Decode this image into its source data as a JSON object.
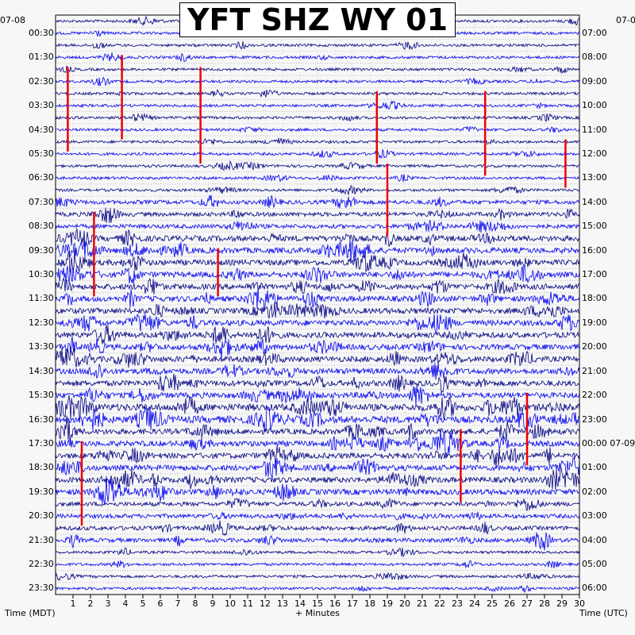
{
  "chart_data": {
    "type": "line",
    "title": "YFT SHZ WY 01",
    "xlabel": "+ Minutes",
    "left_axis_label": "Time (MDT)",
    "right_axis_label": "Time (UTC)",
    "left_date": "07-08",
    "right_date_start": "07-0",
    "right_date_next": "07-09",
    "x_range": [
      0,
      30
    ],
    "x_ticks": [
      1,
      2,
      3,
      4,
      5,
      6,
      7,
      8,
      9,
      10,
      11,
      12,
      13,
      14,
      15,
      16,
      17,
      18,
      19,
      20,
      21,
      22,
      23,
      24,
      25,
      26,
      27,
      28,
      29,
      30
    ],
    "left_tick_labels": [
      "00:30",
      "01:30",
      "02:30",
      "03:30",
      "04:30",
      "05:30",
      "06:30",
      "07:30",
      "08:30",
      "09:30",
      "10:30",
      "11:30",
      "12:30",
      "13:30",
      "14:30",
      "15:30",
      "16:30",
      "17:30",
      "18:30",
      "19:30",
      "20:30",
      "21:30",
      "22:30",
      "23:30"
    ],
    "right_tick_labels": [
      "07:00",
      "08:00",
      "09:00",
      "10:00",
      "11:00",
      "12:00",
      "13:00",
      "14:00",
      "15:00",
      "16:00",
      "17:00",
      "18:00",
      "19:00",
      "20:00",
      "21:00",
      "22:00",
      "23:00",
      "00:00",
      "01:00",
      "02:00",
      "03:00",
      "04:00",
      "05:00",
      "06:00"
    ],
    "trace_count": 48,
    "trace_colors": [
      "#000080",
      "#0000ee"
    ],
    "event_color": "#ee0000",
    "grid": true,
    "trace_amplitude": [
      1,
      1,
      1,
      1,
      1,
      1,
      1,
      1,
      1,
      1,
      1,
      1,
      1,
      1,
      1,
      2,
      2,
      2,
      3,
      3,
      3,
      3,
      3,
      3,
      3,
      3,
      3,
      3,
      3,
      3,
      3,
      3,
      4,
      4,
      3,
      3,
      3,
      3,
      3,
      3,
      2,
      2,
      2,
      2,
      1,
      1,
      1,
      1
    ],
    "events": [
      {
        "trace": 5,
        "minute": 0.7,
        "span_traces": 7
      },
      {
        "trace": 4,
        "minute": 3.8,
        "span_traces": 7
      },
      {
        "trace": 5,
        "minute": 8.3,
        "span_traces": 8
      },
      {
        "trace": 7,
        "minute": 18.4,
        "span_traces": 6
      },
      {
        "trace": 7,
        "minute": 24.6,
        "span_traces": 7
      },
      {
        "trace": 11,
        "minute": 29.2,
        "span_traces": 4
      },
      {
        "trace": 13,
        "minute": 19.0,
        "span_traces": 6
      },
      {
        "trace": 17,
        "minute": 2.2,
        "span_traces": 7
      },
      {
        "trace": 20,
        "minute": 9.3,
        "span_traces": 4
      },
      {
        "trace": 32,
        "minute": 27.0,
        "span_traces": 6
      },
      {
        "trace": 36,
        "minute": 1.5,
        "span_traces": 7
      },
      {
        "trace": 35,
        "minute": 23.2,
        "span_traces": 6
      }
    ]
  }
}
